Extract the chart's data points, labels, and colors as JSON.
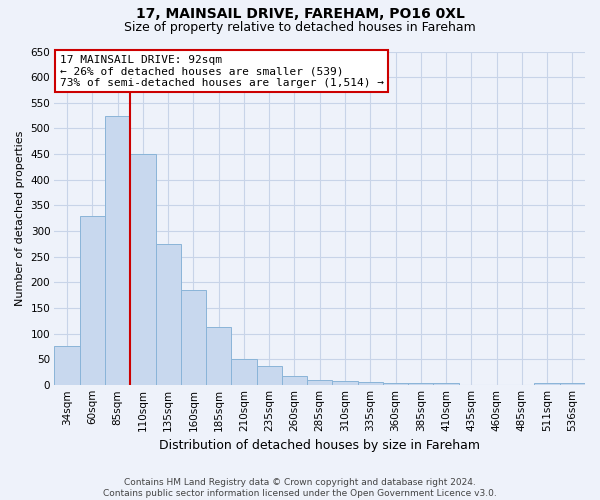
{
  "title_line1": "17, MAINSAIL DRIVE, FAREHAM, PO16 0XL",
  "title_line2": "Size of property relative to detached houses in Fareham",
  "xlabel": "Distribution of detached houses by size in Fareham",
  "ylabel": "Number of detached properties",
  "bar_labels": [
    "34sqm",
    "60sqm",
    "85sqm",
    "110sqm",
    "135sqm",
    "160sqm",
    "185sqm",
    "210sqm",
    "235sqm",
    "260sqm",
    "285sqm",
    "310sqm",
    "335sqm",
    "360sqm",
    "385sqm",
    "410sqm",
    "435sqm",
    "460sqm",
    "485sqm",
    "511sqm",
    "536sqm"
  ],
  "bar_values": [
    75,
    330,
    525,
    450,
    275,
    185,
    113,
    50,
    36,
    18,
    10,
    7,
    5,
    4,
    3,
    3,
    0,
    0,
    0,
    3,
    3
  ],
  "bar_color": "#c8d8ee",
  "bar_edge_color": "#8ab4d8",
  "red_line_bar_index": 2,
  "red_line_color": "#cc0000",
  "ylim": [
    0,
    650
  ],
  "yticks": [
    0,
    50,
    100,
    150,
    200,
    250,
    300,
    350,
    400,
    450,
    500,
    550,
    600,
    650
  ],
  "annotation_title": "17 MAINSAIL DRIVE: 92sqm",
  "annotation_line1": "← 26% of detached houses are smaller (539)",
  "annotation_line2": "73% of semi-detached houses are larger (1,514) →",
  "annotation_box_facecolor": "#ffffff",
  "annotation_box_edgecolor": "#cc0000",
  "footnote1": "Contains HM Land Registry data © Crown copyright and database right 2024.",
  "footnote2": "Contains public sector information licensed under the Open Government Licence v3.0.",
  "bg_color": "#eef2fa",
  "grid_color": "#c8d4e8",
  "title1_fontsize": 10,
  "title2_fontsize": 9,
  "ylabel_fontsize": 8,
  "xlabel_fontsize": 9,
  "tick_fontsize": 7.5,
  "annot_fontsize": 8,
  "footnote_fontsize": 6.5
}
